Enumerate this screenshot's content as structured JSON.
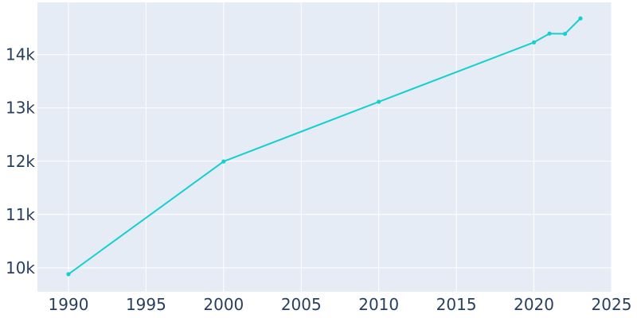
{
  "chart_data": {
    "type": "line",
    "title": "",
    "xlabel": "",
    "ylabel": "",
    "xlim": [
      1988,
      2025
    ],
    "ylim": [
      9550,
      14980
    ],
    "grid": true,
    "x_ticks": [
      1990,
      1995,
      2000,
      2005,
      2010,
      2015,
      2020,
      2025
    ],
    "x_tick_labels": [
      "1990",
      "1995",
      "2000",
      "2005",
      "2010",
      "2015",
      "2020",
      "2025"
    ],
    "y_ticks": [
      10000,
      11000,
      12000,
      13000,
      14000
    ],
    "y_tick_labels": [
      "10k",
      "11k",
      "12k",
      "13k",
      "14k"
    ],
    "series": [
      {
        "color": "#17cfcf",
        "x": [
          1990,
          2000,
          2010,
          2020,
          2021,
          2022,
          2023
        ],
        "y": [
          9880,
          11995,
          13115,
          14230,
          14395,
          14390,
          14680
        ]
      }
    ],
    "plot_background": "#e5ecf6",
    "grid_color": "#ffffff",
    "tick_label_color": "#2a3f5f"
  }
}
